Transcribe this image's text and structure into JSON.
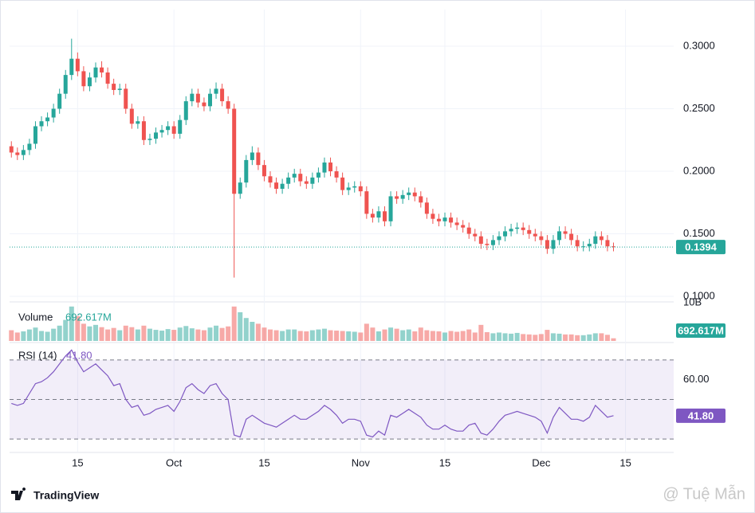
{
  "chart_data": [
    {
      "type": "candlestick",
      "up_color": "#26a69a",
      "down_color": "#ef5350",
      "x": [
        0,
        1,
        2,
        3,
        4,
        5,
        6,
        7,
        8,
        9,
        10,
        11,
        12,
        13,
        14,
        15,
        16,
        17,
        18,
        19,
        20,
        21,
        22,
        23,
        24,
        25,
        26,
        27,
        28,
        29,
        30,
        31,
        32,
        33,
        34,
        35,
        36,
        37,
        38,
        39,
        40,
        41,
        42,
        43,
        44,
        45,
        46,
        47,
        48,
        49,
        50,
        51,
        52,
        53,
        54,
        55,
        56,
        57,
        58,
        59,
        60,
        61,
        62,
        63,
        64,
        65,
        66,
        67,
        68,
        69,
        70,
        71,
        72,
        73,
        74,
        75,
        76,
        77,
        78,
        79,
        80,
        81,
        82,
        83,
        84,
        85,
        86,
        87,
        88,
        89,
        90,
        91,
        92,
        93,
        94,
        95,
        96,
        97,
        98,
        99,
        100
      ],
      "open": [
        0.22,
        0.215,
        0.213,
        0.217,
        0.222,
        0.236,
        0.24,
        0.243,
        0.25,
        0.262,
        0.277,
        0.29,
        0.28,
        0.268,
        0.275,
        0.283,
        0.279,
        0.27,
        0.265,
        0.266,
        0.25,
        0.238,
        0.24,
        0.225,
        0.226,
        0.231,
        0.233,
        0.236,
        0.23,
        0.241,
        0.256,
        0.262,
        0.255,
        0.252,
        0.262,
        0.266,
        0.256,
        0.25,
        0.182,
        0.191,
        0.209,
        0.215,
        0.205,
        0.196,
        0.191,
        0.186,
        0.19,
        0.195,
        0.198,
        0.192,
        0.19,
        0.195,
        0.199,
        0.207,
        0.2,
        0.195,
        0.185,
        0.187,
        0.188,
        0.184,
        0.166,
        0.163,
        0.168,
        0.16,
        0.18,
        0.178,
        0.181,
        0.183,
        0.18,
        0.175,
        0.166,
        0.162,
        0.16,
        0.163,
        0.159,
        0.157,
        0.155,
        0.15,
        0.148,
        0.142,
        0.141,
        0.145,
        0.148,
        0.152,
        0.154,
        0.155,
        0.153,
        0.15,
        0.148,
        0.145,
        0.138,
        0.145,
        0.152,
        0.15,
        0.145,
        0.14,
        0.14,
        0.142,
        0.148,
        0.145,
        0.14
      ],
      "high": [
        0.224,
        0.219,
        0.221,
        0.226,
        0.24,
        0.244,
        0.247,
        0.254,
        0.266,
        0.281,
        0.306,
        0.295,
        0.284,
        0.279,
        0.287,
        0.288,
        0.283,
        0.274,
        0.27,
        0.27,
        0.254,
        0.244,
        0.244,
        0.23,
        0.235,
        0.237,
        0.24,
        0.24,
        0.245,
        0.26,
        0.266,
        0.266,
        0.259,
        0.266,
        0.271,
        0.27,
        0.26,
        0.254,
        0.195,
        0.213,
        0.22,
        0.219,
        0.209,
        0.2,
        0.195,
        0.194,
        0.199,
        0.202,
        0.202,
        0.196,
        0.199,
        0.203,
        0.211,
        0.211,
        0.204,
        0.199,
        0.191,
        0.192,
        0.192,
        0.188,
        0.17,
        0.172,
        0.172,
        0.184,
        0.184,
        0.185,
        0.187,
        0.187,
        0.184,
        0.179,
        0.17,
        0.166,
        0.167,
        0.167,
        0.163,
        0.161,
        0.159,
        0.154,
        0.152,
        0.146,
        0.149,
        0.152,
        0.156,
        0.158,
        0.159,
        0.159,
        0.157,
        0.154,
        0.152,
        0.149,
        0.149,
        0.156,
        0.156,
        0.154,
        0.149,
        0.144,
        0.146,
        0.152,
        0.152,
        0.149,
        0.143
      ],
      "low": [
        0.211,
        0.209,
        0.209,
        0.213,
        0.218,
        0.232,
        0.236,
        0.239,
        0.246,
        0.258,
        0.273,
        0.276,
        0.264,
        0.264,
        0.271,
        0.275,
        0.266,
        0.261,
        0.261,
        0.246,
        0.234,
        0.234,
        0.221,
        0.221,
        0.222,
        0.227,
        0.229,
        0.226,
        0.226,
        0.237,
        0.252,
        0.251,
        0.248,
        0.248,
        0.258,
        0.252,
        0.246,
        0.115,
        0.178,
        0.187,
        0.205,
        0.201,
        0.192,
        0.187,
        0.182,
        0.182,
        0.186,
        0.191,
        0.188,
        0.186,
        0.186,
        0.191,
        0.195,
        0.196,
        0.191,
        0.181,
        0.181,
        0.183,
        0.18,
        0.162,
        0.159,
        0.159,
        0.156,
        0.156,
        0.174,
        0.174,
        0.177,
        0.176,
        0.171,
        0.162,
        0.158,
        0.156,
        0.156,
        0.155,
        0.153,
        0.151,
        0.146,
        0.144,
        0.138,
        0.137,
        0.137,
        0.141,
        0.144,
        0.148,
        0.15,
        0.149,
        0.146,
        0.144,
        0.141,
        0.134,
        0.134,
        0.141,
        0.146,
        0.141,
        0.136,
        0.136,
        0.136,
        0.138,
        0.141,
        0.136,
        0.136
      ],
      "close": [
        0.215,
        0.213,
        0.217,
        0.222,
        0.236,
        0.24,
        0.243,
        0.25,
        0.262,
        0.277,
        0.29,
        0.28,
        0.268,
        0.275,
        0.283,
        0.279,
        0.27,
        0.265,
        0.266,
        0.25,
        0.238,
        0.24,
        0.225,
        0.226,
        0.231,
        0.233,
        0.236,
        0.23,
        0.241,
        0.256,
        0.262,
        0.255,
        0.252,
        0.262,
        0.266,
        0.256,
        0.25,
        0.182,
        0.191,
        0.209,
        0.215,
        0.205,
        0.196,
        0.191,
        0.186,
        0.19,
        0.195,
        0.198,
        0.192,
        0.19,
        0.195,
        0.199,
        0.207,
        0.2,
        0.195,
        0.185,
        0.187,
        0.188,
        0.184,
        0.166,
        0.163,
        0.168,
        0.16,
        0.18,
        0.178,
        0.181,
        0.183,
        0.18,
        0.175,
        0.166,
        0.162,
        0.16,
        0.163,
        0.159,
        0.157,
        0.155,
        0.15,
        0.148,
        0.142,
        0.141,
        0.145,
        0.148,
        0.152,
        0.154,
        0.155,
        0.153,
        0.15,
        0.148,
        0.145,
        0.138,
        0.145,
        0.152,
        0.15,
        0.145,
        0.14,
        0.14,
        0.142,
        0.148,
        0.145,
        0.14,
        0.1394
      ],
      "last_price": 0.1394,
      "xlim": [
        -0.3,
        110
      ],
      "xticks": [
        {
          "value": 11,
          "label": "15"
        },
        {
          "value": 27,
          "label": "Oct"
        },
        {
          "value": 42,
          "label": "15"
        },
        {
          "value": 58,
          "label": "Nov"
        },
        {
          "value": 72,
          "label": "15"
        },
        {
          "value": 88,
          "label": "Dec"
        },
        {
          "value": 102,
          "label": "15"
        }
      ],
      "ylim": [
        0.0962,
        0.3293
      ],
      "yticks": [
        {
          "value": 0.1,
          "label": "0.1000"
        },
        {
          "value": 0.15,
          "label": "0.1500"
        },
        {
          "value": 0.2,
          "label": "0.2000"
        },
        {
          "value": 0.25,
          "label": "0.2500"
        },
        {
          "value": 0.3,
          "label": "0.3000"
        }
      ],
      "grid": true
    },
    {
      "type": "volume",
      "title": "Volume",
      "up_color": "#26a69a",
      "down_color": "#ef5350",
      "values": [
        2800,
        2200,
        2500,
        3000,
        3500,
        2600,
        2400,
        3200,
        4000,
        5500,
        9000,
        6500,
        4500,
        3800,
        4200,
        3600,
        3000,
        3400,
        2800,
        4000,
        3600,
        3000,
        4000,
        3200,
        2900,
        2700,
        3100,
        2900,
        3500,
        3900,
        3300,
        3000,
        2800,
        3500,
        4000,
        3400,
        3800,
        9000,
        7500,
        6000,
        5000,
        4500,
        3500,
        3000,
        2800,
        2600,
        3000,
        3000,
        2600,
        2500,
        2800,
        3000,
        3200,
        2800,
        2700,
        2600,
        2500,
        2400,
        2200,
        4500,
        3500,
        2500,
        3000,
        3500,
        3200,
        2800,
        3000,
        2500,
        3500,
        2800,
        2600,
        2500,
        2200,
        2600,
        2400,
        2600,
        3000,
        2200,
        4200,
        2300,
        2000,
        2200,
        2000,
        1900,
        2100,
        1800,
        1700,
        1600,
        1800,
        2900,
        2000,
        1900,
        1700,
        1700,
        1500,
        1500,
        1700,
        2000,
        2000,
        1600,
        692.617
      ],
      "last_value": 692.617,
      "last_value_label": "692.617M",
      "ylim": [
        0,
        10000
      ],
      "yticks": [
        {
          "value": 10000,
          "label": "10B"
        }
      ]
    },
    {
      "type": "line",
      "title": "RSI (14)",
      "color": "#7e57c2",
      "values": [
        48,
        47,
        48,
        53,
        58,
        59,
        61,
        64,
        68,
        72,
        75,
        69,
        64,
        66,
        68,
        65,
        62,
        57,
        58,
        50,
        46,
        47,
        42,
        43,
        45,
        46,
        47,
        44,
        49,
        56,
        58,
        55,
        53,
        57,
        58,
        53,
        50,
        32,
        31,
        40,
        42,
        40,
        38,
        37,
        36,
        38,
        40,
        42,
        40,
        40,
        42,
        44,
        47,
        45,
        42,
        38,
        40,
        40,
        39,
        32,
        31,
        34,
        32,
        42,
        41,
        43,
        45,
        43,
        41,
        37,
        35,
        35,
        37,
        35,
        34,
        34,
        37,
        38,
        33,
        32,
        35,
        39,
        42,
        43,
        44,
        43,
        42,
        41,
        39,
        33,
        41,
        46,
        43,
        40,
        40,
        39,
        41,
        47,
        44,
        41,
        41.8
      ],
      "last_value": 41.8,
      "last_value_label": "41.80",
      "band": [
        30,
        70
      ],
      "midline": 50,
      "ylim": [
        23.6,
        78
      ],
      "yticks": [
        {
          "value": 60,
          "label": "60.00"
        }
      ]
    }
  ],
  "footer": {
    "logo": "TradingView",
    "watermark": "@ Tuệ Mẫn"
  }
}
